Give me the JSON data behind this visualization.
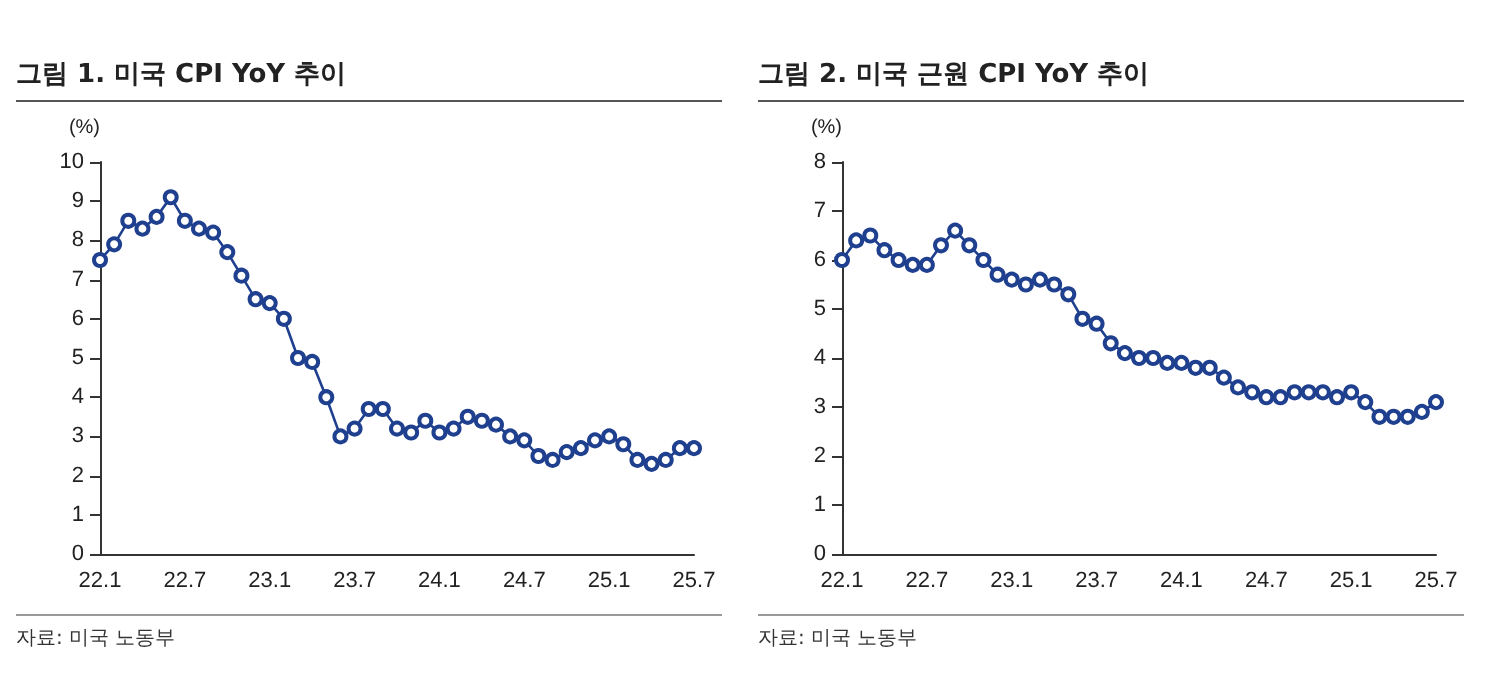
{
  "chart_data": [
    {
      "type": "line",
      "title": "그림 1. 미국 CPI YoY 추이",
      "ylabel": "(%)",
      "annotations": [
        "자료: 미국 노동부"
      ],
      "categories": [
        "22.1",
        null,
        null,
        null,
        null,
        null,
        "22.7",
        null,
        null,
        null,
        null,
        null,
        "23.1",
        null,
        null,
        null,
        null,
        null,
        "23.7",
        null,
        null,
        null,
        null,
        null,
        "24.1",
        null,
        null,
        null,
        null,
        null,
        "24.7",
        null,
        null,
        null,
        null,
        null,
        "25.1",
        null,
        null,
        null,
        null,
        null,
        "25.7"
      ],
      "series": [
        {
          "color": "#1f3f8f",
          "values": [
            7.5,
            7.9,
            8.5,
            8.3,
            8.6,
            9.1,
            8.5,
            8.3,
            8.2,
            7.7,
            7.1,
            6.5,
            6.4,
            6.0,
            5.0,
            4.9,
            4.0,
            3.0,
            3.2,
            3.7,
            3.7,
            3.2,
            3.1,
            3.4,
            3.1,
            3.2,
            3.5,
            3.4,
            3.3,
            3.0,
            2.9,
            2.5,
            2.4,
            2.6,
            2.7,
            2.9,
            3.0,
            2.8,
            2.4,
            2.3,
            2.4,
            2.7,
            2.7
          ]
        }
      ],
      "ylim": [
        0,
        10
      ],
      "yticks": [
        0,
        1,
        2,
        3,
        4,
        5,
        6,
        7,
        8,
        9,
        10
      ],
      "marker": "circle"
    },
    {
      "type": "line",
      "title": "그림 2. 미국 근원 CPI YoY 추이",
      "ylabel": "(%)",
      "annotations": [
        "자료: 미국 노동부"
      ],
      "categories": [
        "22.1",
        null,
        null,
        null,
        null,
        null,
        "22.7",
        null,
        null,
        null,
        null,
        null,
        "23.1",
        null,
        null,
        null,
        null,
        null,
        "23.7",
        null,
        null,
        null,
        null,
        null,
        "24.1",
        null,
        null,
        null,
        null,
        null,
        "24.7",
        null,
        null,
        null,
        null,
        null,
        "25.1",
        null,
        null,
        null,
        null,
        null,
        "25.7"
      ],
      "series": [
        {
          "color": "#1f3f8f",
          "values": [
            6.0,
            6.4,
            6.5,
            6.2,
            6.0,
            5.9,
            5.9,
            6.3,
            6.6,
            6.3,
            6.0,
            5.7,
            5.6,
            5.5,
            5.6,
            5.5,
            5.3,
            4.8,
            4.7,
            4.3,
            4.1,
            4.0,
            4.0,
            3.9,
            3.9,
            3.8,
            3.8,
            3.6,
            3.4,
            3.3,
            3.2,
            3.2,
            3.3,
            3.3,
            3.3,
            3.2,
            3.3,
            3.1,
            2.8,
            2.8,
            2.8,
            2.9,
            3.1
          ]
        }
      ],
      "ylim": [
        0,
        8
      ],
      "yticks": [
        0,
        1,
        2,
        3,
        4,
        5,
        6,
        7,
        8
      ],
      "marker": "circle"
    }
  ]
}
